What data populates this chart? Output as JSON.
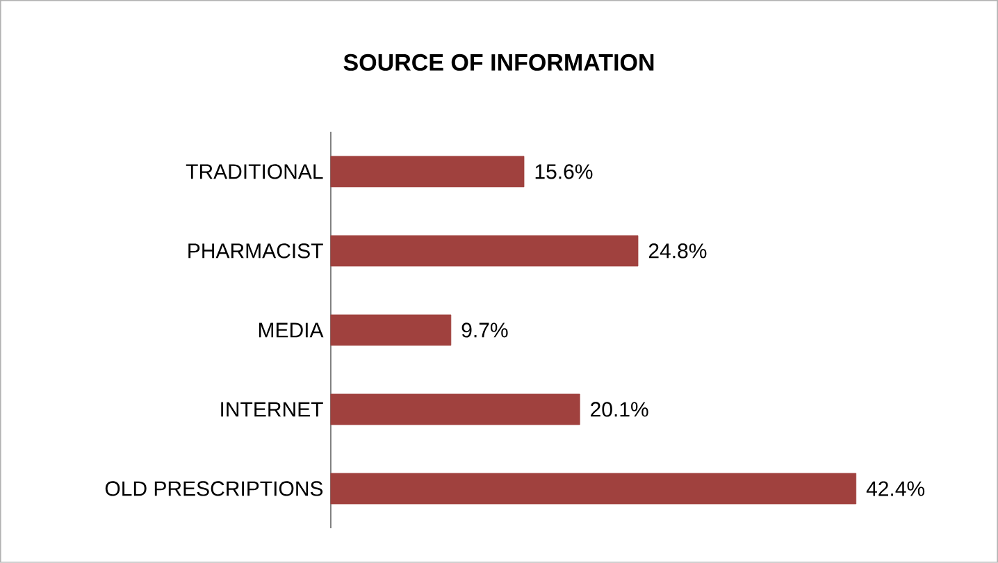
{
  "chart_data": {
    "type": "bar",
    "orientation": "horizontal",
    "title": "SOURCE OF INFORMATION",
    "categories": [
      "TRADITIONAL",
      "PHARMACIST",
      "MEDIA",
      "INTERNET",
      "OLD PRESCRIPTIONS"
    ],
    "values": [
      15.6,
      24.8,
      9.7,
      20.1,
      42.4
    ],
    "value_labels": [
      "15.6%",
      "24.8%",
      "9.7%",
      "20.1%",
      "42.4%"
    ],
    "color": "#a0413e"
  }
}
